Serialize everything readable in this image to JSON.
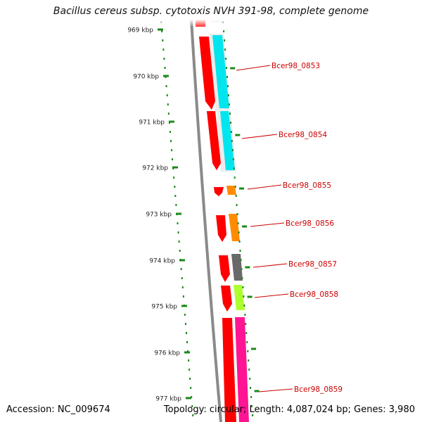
{
  "header": {
    "title": "Bacillus cereus subsp. cytotoxis NVH 391-98, complete genome"
  },
  "footer": {
    "accession": "Accession: NC_009674",
    "summary": "Topology: circular; Length: 4,087,024 bp; Genes: 3,980"
  },
  "ruler": {
    "ticks": [
      "969 kbp",
      "970 kbp",
      "971 kbp",
      "972 kbp",
      "973 kbp",
      "974 kbp",
      "975 kbp",
      "976 kbp",
      "977 kbp"
    ]
  },
  "genes": [
    {
      "label": "Bcer98_0853",
      "color": "#00e5ee"
    },
    {
      "label": "Bcer98_0854",
      "color": "#00e5ee"
    },
    {
      "label": "Bcer98_0855",
      "color": "#ff8c00"
    },
    {
      "label": "Bcer98_0856",
      "color": "#ff8c00"
    },
    {
      "label": "Bcer98_0857",
      "color": "#696969"
    },
    {
      "label": "Bcer98_0858",
      "color": "#adff2f"
    },
    {
      "label": "Bcer98_0859",
      "color": "#ff1493"
    }
  ],
  "colors": {
    "cds": "#ff0000",
    "tick": "#1a8a1a",
    "label": "#cc0000",
    "backbone": "#8a8a8a"
  }
}
